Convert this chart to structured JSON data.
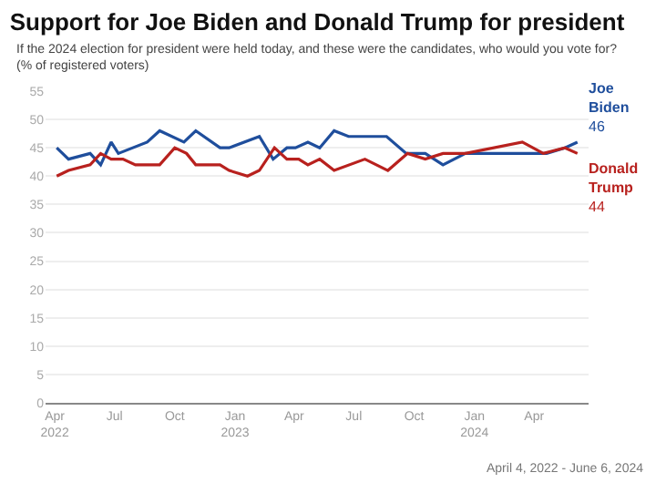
{
  "chart_data": {
    "type": "line",
    "title": "Support for Joe Biden and Donald Trump for president",
    "subtitle": "If the 2024 election for president were held today, and these were the candidates, who would you vote for?\n(% of registered voters)",
    "series": [
      {
        "name": "Joe Biden",
        "color": "#1f4e9c",
        "x": [
          "2022-04-04",
          "2022-04-22",
          "2022-05-25",
          "2022-06-10",
          "2022-06-26",
          "2022-07-07",
          "2022-08-20",
          "2022-09-08",
          "2022-10-15",
          "2022-11-02",
          "2022-12-09",
          "2022-12-23",
          "2023-02-07",
          "2023-02-28",
          "2023-03-21",
          "2023-04-03",
          "2023-04-22",
          "2023-05-10",
          "2023-06-01",
          "2023-06-23",
          "2023-07-18",
          "2023-08-20",
          "2023-09-19",
          "2023-10-18",
          "2023-11-14",
          "2023-12-18",
          "2024-04-20",
          "2024-05-18",
          "2024-06-06"
        ],
        "values": [
          45,
          43,
          44,
          42,
          46,
          44,
          46,
          48,
          46,
          48,
          45,
          45,
          47,
          43,
          45,
          45,
          46,
          45,
          48,
          47,
          47,
          47,
          44,
          44,
          42,
          44,
          44,
          45,
          46
        ],
        "value_labels": [
          null,
          null,
          null,
          null,
          null,
          null,
          null,
          null,
          null,
          null,
          null,
          null,
          null,
          null,
          null,
          null,
          null,
          null,
          null,
          null,
          null,
          null,
          null,
          null,
          null,
          null,
          null,
          null,
          "46"
        ]
      },
      {
        "name": "Donald Trump",
        "color": "#b8211e",
        "x": [
          "2022-04-04",
          "2022-04-22",
          "2022-05-25",
          "2022-06-10",
          "2022-06-26",
          "2022-07-14",
          "2022-08-02",
          "2022-09-08",
          "2022-10-01",
          "2022-10-19",
          "2022-11-02",
          "2022-12-09",
          "2022-12-23",
          "2023-01-20",
          "2023-02-07",
          "2023-03-02",
          "2023-03-21",
          "2023-04-08",
          "2023-04-22",
          "2023-05-10",
          "2023-06-01",
          "2023-07-18",
          "2023-08-22",
          "2023-09-21",
          "2023-10-18",
          "2023-11-14",
          "2023-12-18",
          "2024-03-14",
          "2024-04-15",
          "2024-05-18",
          "2024-06-06"
        ],
        "values": [
          40,
          41,
          42,
          44,
          43,
          43,
          42,
          42,
          45,
          44,
          42,
          42,
          41,
          40,
          41,
          45,
          43,
          43,
          42,
          43,
          41,
          43,
          41,
          44,
          43,
          44,
          44,
          46,
          44,
          45,
          44
        ],
        "value_labels": [
          null,
          null,
          null,
          null,
          null,
          null,
          null,
          null,
          null,
          null,
          null,
          null,
          null,
          null,
          null,
          null,
          null,
          null,
          null,
          null,
          null,
          null,
          null,
          null,
          null,
          null,
          null,
          null,
          null,
          null,
          "44"
        ]
      }
    ],
    "xlim": [
      "2022-03-18",
      "2024-06-23"
    ],
    "xticks": [
      {
        "value": "2022-04-01",
        "label": "Apr\n2022"
      },
      {
        "value": "2022-07-01",
        "label": "Jul"
      },
      {
        "value": "2022-10-01",
        "label": "Oct"
      },
      {
        "value": "2023-01-01",
        "label": "Jan\n2023"
      },
      {
        "value": "2023-04-01",
        "label": "Apr"
      },
      {
        "value": "2023-07-01",
        "label": "Jul"
      },
      {
        "value": "2023-10-01",
        "label": "Oct"
      },
      {
        "value": "2024-01-01",
        "label": "Jan\n2024"
      },
      {
        "value": "2024-04-01",
        "label": "Apr"
      }
    ],
    "ylim": [
      0,
      55
    ],
    "yticks": [
      0,
      5,
      10,
      15,
      20,
      25,
      30,
      35,
      40,
      45,
      50,
      55
    ],
    "grid": "y",
    "legend": false,
    "marker": "none",
    "line_style": "solid",
    "annotations": [
      "April 4, 2022 - June 6, 2024"
    ]
  }
}
